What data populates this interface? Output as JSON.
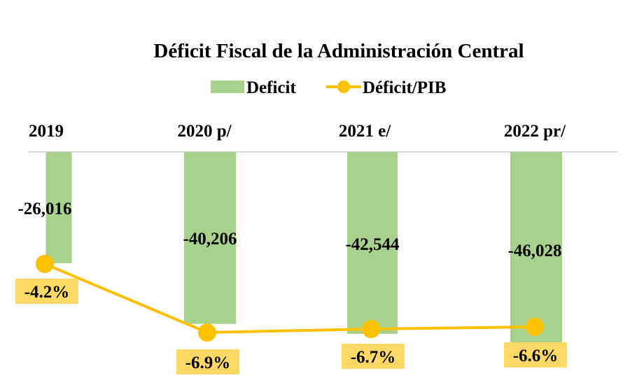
{
  "chart_data": {
    "type": "bar",
    "title": "Déficit Fiscal de la Administración Central",
    "categories": [
      "2019",
      "2020 p/",
      "2021 e/",
      "2022 pr/"
    ],
    "series": [
      {
        "name": "Deficit",
        "type": "bar",
        "values": [
          -26016,
          -40206,
          -42544,
          -46028
        ],
        "labels": [
          "-26,016",
          "-40,206",
          "-42,544",
          "-46,028"
        ],
        "color": "#a9d18e"
      },
      {
        "name": "Déficit/PIB",
        "type": "line",
        "values": [
          -4.2,
          -6.9,
          -6.7,
          -6.6
        ],
        "labels": [
          "-4.2%",
          "-6.9%",
          "-6.7%",
          "-6.6%"
        ],
        "color": "#ffc000",
        "label_box_color": "#ffd966"
      }
    ],
    "legend_position": "top",
    "category_labels_position": "top",
    "grid": false,
    "axis_line_color": "#d9d9d9"
  }
}
